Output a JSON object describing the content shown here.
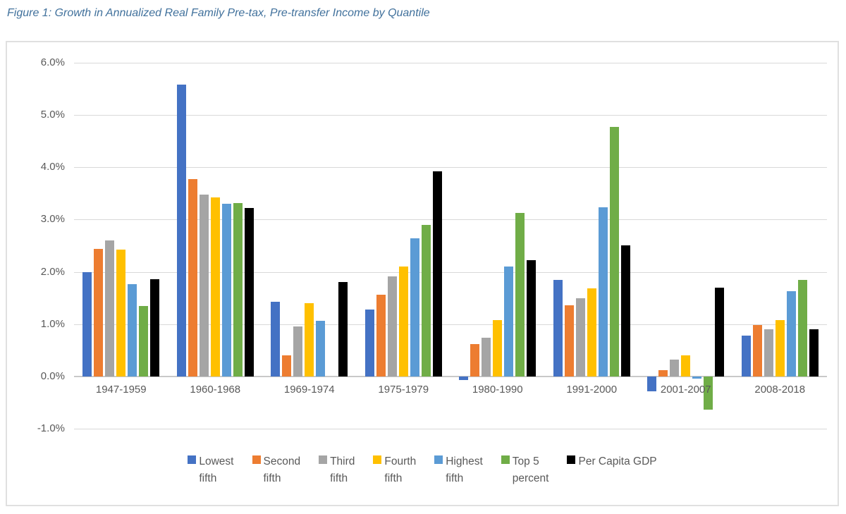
{
  "title": "Figure 1: Growth in Annualized Real Family Pre-tax, Pre-transfer Income by Quantile",
  "colors": {
    "title_text": "#41719C",
    "axis_text": "#595959",
    "gridline": "#D9D9D9",
    "frame_border": "#E0E0E0"
  },
  "chart_data": {
    "type": "bar",
    "title": "Figure 1: Growth in Annualized Real Family Pre-tax, Pre-transfer Income by Quantile",
    "xlabel": "",
    "ylabel": "",
    "ylim": [
      -1.0,
      6.0
    ],
    "grid": true,
    "legend_position": "bottom",
    "y_ticks": [
      {
        "value": 6.0,
        "label": "6.0%"
      },
      {
        "value": 5.0,
        "label": "5.0%"
      },
      {
        "value": 4.0,
        "label": "4.0%"
      },
      {
        "value": 3.0,
        "label": "3.0%"
      },
      {
        "value": 2.0,
        "label": "2.0%"
      },
      {
        "value": 1.0,
        "label": "1.0%"
      },
      {
        "value": 0.0,
        "label": "0.0%"
      },
      {
        "value": -1.0,
        "label": "-1.0%"
      }
    ],
    "categories": [
      "1947-1959",
      "1960-1968",
      "1969-1974",
      "1975-1979",
      "1980-1990",
      "1991-2000",
      "2001-2007",
      "2008-2018"
    ],
    "series": [
      {
        "name": "Lowest fifth",
        "legend_lines": [
          "Lowest",
          "fifth"
        ],
        "color": "#4472C4",
        "values": [
          2.0,
          5.58,
          1.43,
          1.28,
          -0.07,
          1.85,
          -0.28,
          0.78
        ]
      },
      {
        "name": "Second fifth",
        "legend_lines": [
          "Second",
          "fifth"
        ],
        "color": "#ED7D31",
        "values": [
          2.44,
          3.78,
          0.41,
          1.56,
          0.62,
          1.36,
          0.12,
          0.98
        ]
      },
      {
        "name": "Third fifth",
        "legend_lines": [
          "Third",
          "fifth"
        ],
        "color": "#A5A5A5",
        "values": [
          2.6,
          3.48,
          0.95,
          1.91,
          0.74,
          1.5,
          0.32,
          0.9
        ]
      },
      {
        "name": "Fourth fifth",
        "legend_lines": [
          "Fourth",
          "fifth"
        ],
        "color": "#FFC000",
        "values": [
          2.42,
          3.42,
          1.4,
          2.1,
          1.08,
          1.68,
          0.41,
          1.08
        ]
      },
      {
        "name": "Highest fifth",
        "legend_lines": [
          "Highest",
          "fifth"
        ],
        "color": "#5B9BD5",
        "values": [
          1.77,
          3.3,
          1.07,
          2.64,
          2.1,
          3.24,
          -0.04,
          1.63
        ]
      },
      {
        "name": "Top 5 percent",
        "legend_lines": [
          "Top 5",
          "percent"
        ],
        "color": "#70AD47",
        "values": [
          1.35,
          3.32,
          0.0,
          2.9,
          3.13,
          4.78,
          -0.64,
          1.85
        ]
      },
      {
        "name": "Per Capita GDP",
        "legend_lines": [
          "Per Capita GDP"
        ],
        "color": "#000000",
        "values": [
          1.86,
          3.22,
          1.8,
          3.93,
          2.22,
          2.51,
          1.7,
          0.9
        ]
      }
    ]
  }
}
